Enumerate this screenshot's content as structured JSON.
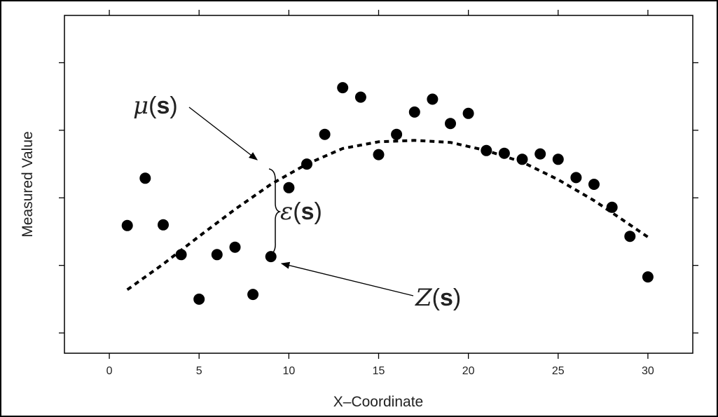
{
  "chart_data": {
    "type": "scatter",
    "title": "",
    "xlabel": "X–Coordinate",
    "ylabel": "Measured Value",
    "xlim": [
      -2.5,
      32.5
    ],
    "ylim": [
      0,
      5
    ],
    "x_ticks": [
      "0",
      "5",
      "10",
      "15",
      "20",
      "25",
      "30"
    ],
    "y_ticks_labeled": false,
    "grid": false,
    "series": [
      {
        "type": "scatter",
        "x": [
          1,
          2,
          3,
          4,
          5,
          6,
          7,
          8,
          9,
          10,
          11,
          12,
          13,
          14,
          15,
          16,
          17,
          18,
          19,
          20,
          21,
          22,
          23,
          24,
          25,
          26,
          27,
          28,
          29,
          30
        ],
        "y": [
          1.89,
          2.59,
          1.9,
          1.46,
          0.8,
          1.46,
          1.57,
          0.87,
          1.43,
          2.45,
          2.8,
          3.24,
          3.93,
          3.79,
          2.94,
          3.24,
          3.57,
          3.76,
          3.4,
          3.55,
          3.0,
          2.96,
          2.87,
          2.95,
          2.87,
          2.6,
          2.5,
          2.16,
          1.73,
          1.13
        ]
      },
      {
        "type": "line",
        "style": "dashed",
        "x": [
          1,
          3,
          5,
          7,
          9,
          11,
          13,
          15,
          17,
          19,
          21,
          23,
          25,
          27,
          29,
          30
        ],
        "y": [
          0.94,
          1.32,
          1.73,
          2.13,
          2.5,
          2.8,
          3.03,
          3.13,
          3.15,
          3.12,
          3.0,
          2.83,
          2.57,
          2.26,
          1.9,
          1.72
        ]
      }
    ],
    "annotations": [
      {
        "name": "mu",
        "symbol": "μ",
        "arg": "s",
        "points_to": {
          "x": 8.4,
          "y": 2.55
        }
      },
      {
        "name": "eps",
        "symbol": "ε",
        "arg": "s",
        "spans_x": 9,
        "from_y": 1.53,
        "to_y": 2.53
      },
      {
        "name": "z",
        "symbol": "Z",
        "arg": "s",
        "points_to": {
          "x": 9.8,
          "y": 1.43
        }
      }
    ]
  }
}
